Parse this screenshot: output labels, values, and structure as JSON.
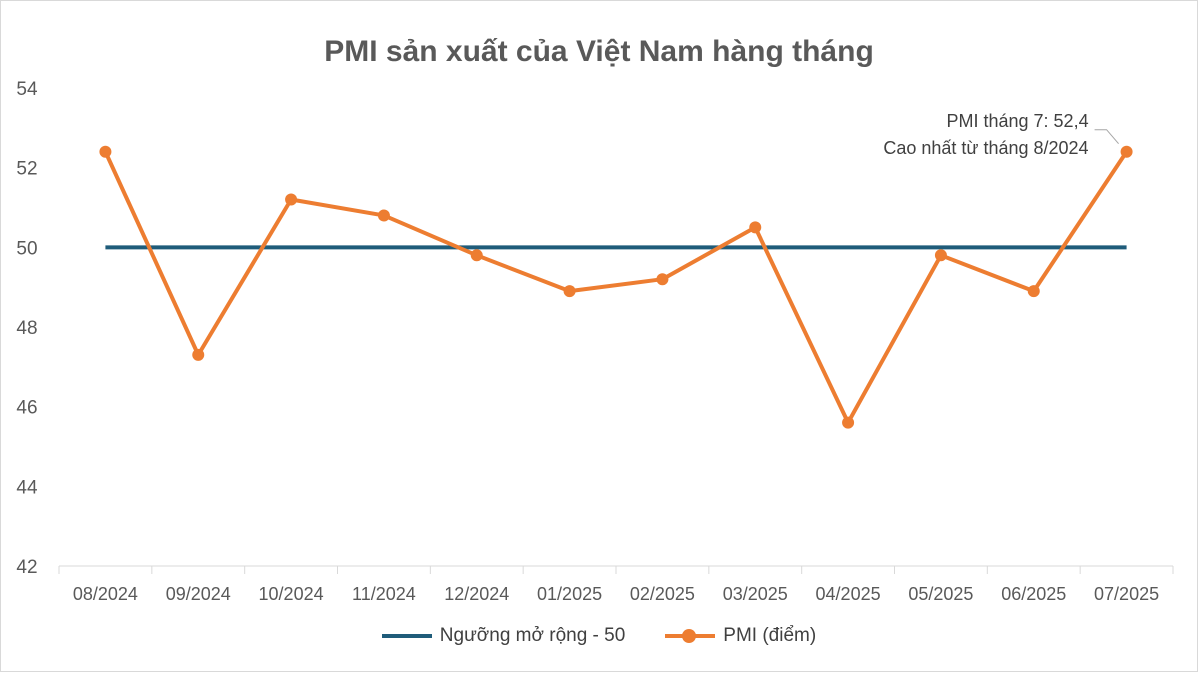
{
  "chart_data": {
    "type": "line",
    "title": "PMI sản xuất của Việt Nam hàng tháng",
    "categories": [
      "08/2024",
      "09/2024",
      "10/2024",
      "11/2024",
      "12/2024",
      "01/2025",
      "02/2025",
      "03/2025",
      "04/2025",
      "05/2025",
      "06/2025",
      "07/2025"
    ],
    "series": [
      {
        "name": "Ngưỡng mở rộng - 50",
        "color": "#1f5c7a",
        "values": [
          50,
          50,
          50,
          50,
          50,
          50,
          50,
          50,
          50,
          50,
          50,
          50
        ]
      },
      {
        "name": "PMI (điểm)",
        "color": "#ed7d31",
        "values": [
          52.4,
          47.3,
          51.2,
          50.8,
          49.8,
          48.9,
          49.2,
          50.5,
          45.6,
          49.8,
          48.9,
          52.4
        ]
      }
    ],
    "ylim": [
      42,
      54
    ],
    "yticks": [
      "42",
      "44",
      "46",
      "48",
      "50",
      "52",
      "54"
    ],
    "grid": false,
    "legend": "bottom",
    "annotation": {
      "lines": [
        "PMI tháng 7: 52,4",
        "Cao nhất từ tháng 8/2024"
      ],
      "category": "07/2025"
    }
  }
}
